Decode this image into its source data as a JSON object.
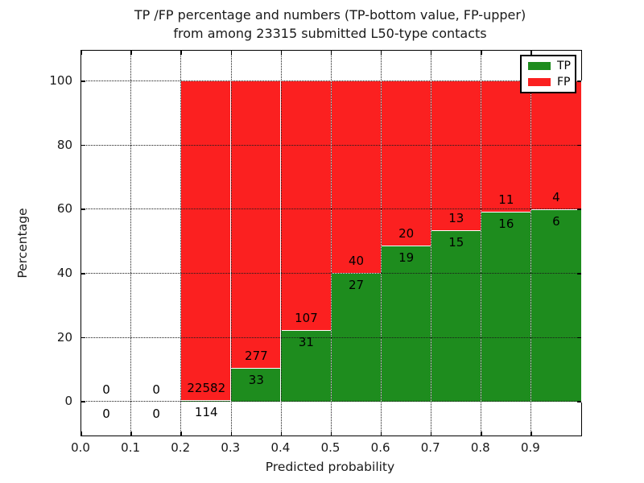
{
  "title_line1": "TP /FP percentage and numbers (TP-bottom value, FP-upper)",
  "title_line2": "from among 23315 submitted L50-type contacts",
  "chart_data": {
    "type": "bar",
    "subtype": "stacked-percentage-histogram",
    "title": "TP /FP percentage and numbers (TP-bottom value, FP-upper) from among 23315 submitted L50-type contacts",
    "xlabel": "Predicted probability",
    "ylabel": "Percentage",
    "xlim": [
      0.0,
      1.0
    ],
    "ylim": [
      -10.5,
      109.5
    ],
    "x_tick_values": [
      0.0,
      0.1,
      0.2,
      0.3,
      0.4,
      0.5,
      0.6,
      0.7,
      0.8,
      0.9
    ],
    "x_tick_labels": [
      "0.0",
      "0.1",
      "0.2",
      "0.3",
      "0.4",
      "0.5",
      "0.6",
      "0.7",
      "0.8",
      "0.9"
    ],
    "y_tick_values": [
      0,
      20,
      40,
      60,
      80,
      100
    ],
    "y_tick_labels": [
      "0",
      "20",
      "40",
      "60",
      "80",
      "100"
    ],
    "grid": "dotted, drawn above bars",
    "bin_edges": [
      0.0,
      0.1,
      0.2,
      0.3,
      0.4,
      0.5,
      0.6,
      0.7,
      0.8,
      0.9,
      1.0
    ],
    "bar_rule": "each bin scaled to 100%: TP share green on bottom, FP share red on top; counts annotated (TP below boundary, FP above)",
    "series": [
      {
        "name": "TP",
        "color": "#1e8c1e",
        "counts": [
          0,
          0,
          114,
          33,
          31,
          27,
          19,
          15,
          16,
          6
        ]
      },
      {
        "name": "FP",
        "color": "#fb2020",
        "counts": [
          0,
          0,
          22582,
          277,
          107,
          40,
          20,
          13,
          11,
          4
        ]
      }
    ],
    "total_submitted": 23315,
    "legend": {
      "position": "upper right",
      "entries": [
        "TP",
        "FP"
      ]
    },
    "bar_edge_color": "#ffffff",
    "background": "#ffffff"
  }
}
